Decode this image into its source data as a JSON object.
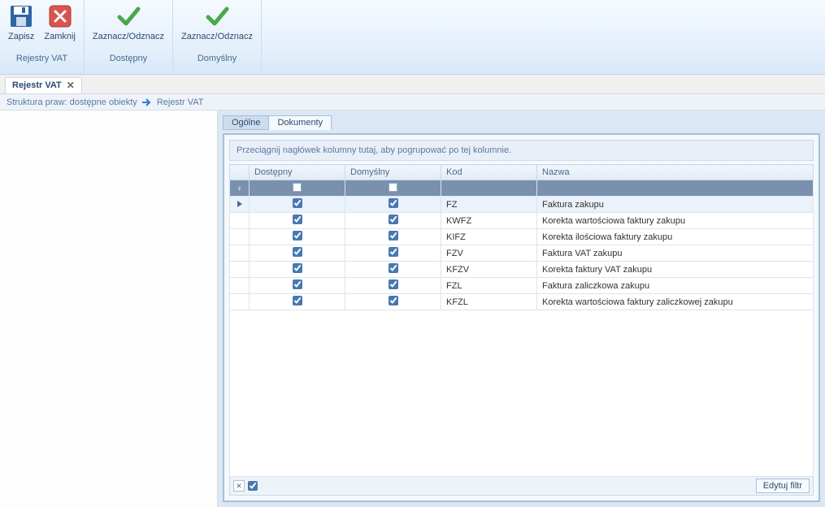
{
  "ribbon": {
    "groups": [
      {
        "label": "Rejestry VAT",
        "buttons": [
          {
            "key": "save",
            "label": "Zapisz",
            "icon": "save"
          },
          {
            "key": "close",
            "label": "Zamknij",
            "icon": "close"
          }
        ]
      },
      {
        "label": "Dostępny",
        "buttons": [
          {
            "key": "toggle_available",
            "label": "Zaznacz/Odznacz",
            "icon": "check"
          }
        ]
      },
      {
        "label": "Domyślny",
        "buttons": [
          {
            "key": "toggle_default",
            "label": "Zaznacz/Odznacz",
            "icon": "check"
          }
        ]
      }
    ]
  },
  "doc_tab": {
    "label": "Rejestr VAT"
  },
  "breadcrumb": {
    "part1": "Struktura praw: dostępne obiekty",
    "part2": "Rejestr VAT"
  },
  "inner_tabs": [
    {
      "label": "Ogólne",
      "active": false
    },
    {
      "label": "Dokumenty",
      "active": true
    }
  ],
  "grid": {
    "group_hint": "Przeciągnij nagłówek kolumny tutaj, aby pogrupować po tej kolumnie.",
    "columns": {
      "dostepny": "Dostępny",
      "domyslny": "Domyślny",
      "kod": "Kod",
      "nazwa": "Nazwa"
    },
    "rows": [
      {
        "dostepny": true,
        "domyslny": true,
        "kod": "FZ",
        "nazwa": "Faktura zakupu",
        "selected": true
      },
      {
        "dostepny": true,
        "domyslny": true,
        "kod": "KWFZ",
        "nazwa": "Korekta wartościowa faktury zakupu"
      },
      {
        "dostepny": true,
        "domyslny": true,
        "kod": "KIFZ",
        "nazwa": "Korekta ilościowa faktury zakupu"
      },
      {
        "dostepny": true,
        "domyslny": true,
        "kod": "FZV",
        "nazwa": "Faktura VAT zakupu"
      },
      {
        "dostepny": true,
        "domyslny": true,
        "kod": "KFZV",
        "nazwa": "Korekta faktury VAT zakupu"
      },
      {
        "dostepny": true,
        "domyslny": true,
        "kod": "FZL",
        "nazwa": "Faktura zaliczkowa zakupu"
      },
      {
        "dostepny": true,
        "domyslny": true,
        "kod": "KFZL",
        "nazwa": "Korekta wartościowa faktury zaliczkowej zakupu"
      }
    ],
    "footer": {
      "edit_filter": "Edytuj filtr"
    }
  },
  "colors": {
    "accent": "#4a78b0",
    "ribbon_top": "#f5faff",
    "ribbon_bottom": "#d9e9f8",
    "panel_bg": "#dbe7f4",
    "header_text": "#4a6a90"
  }
}
